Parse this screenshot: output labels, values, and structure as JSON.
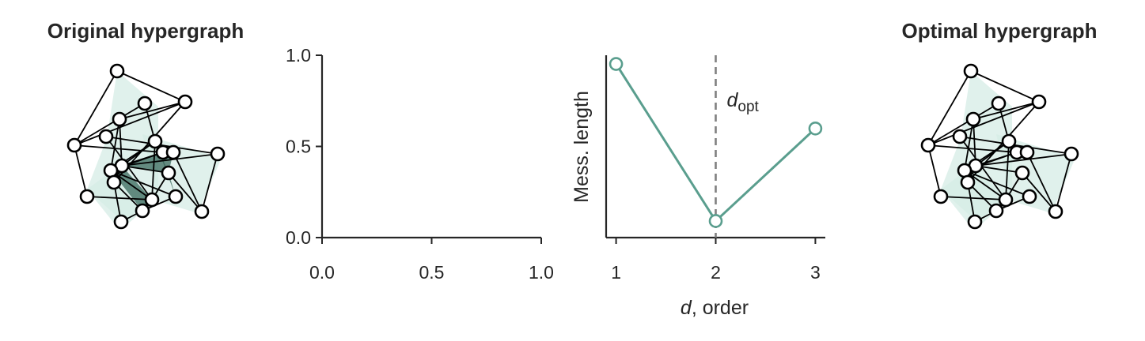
{
  "colors": {
    "series": "#5a9e8e",
    "hyperedge_light": "#d6ece6",
    "hyperedge_dark": "#2f5f52",
    "node_fill": "#ffffff",
    "node_stroke": "#000000",
    "vline": "#808080",
    "axis": "#262626"
  },
  "chart_data": [
    {
      "type": "other",
      "title": "Original hypergraph",
      "description_of_marks": "network drawing with nodes and hyperedges"
    },
    {
      "type": "scatter",
      "title": "",
      "xlabel": "",
      "ylabel": "",
      "xlim": [
        0.0,
        1.0
      ],
      "ylim": [
        0.0,
        1.0
      ],
      "xticks": [
        "0.0",
        "0.5",
        "1.0"
      ],
      "yticks": [
        "0.0",
        "0.5",
        "1.0"
      ],
      "series": []
    },
    {
      "type": "line",
      "title": "",
      "xlabel_italic": "d",
      "xlabel_rest": ", order",
      "ylabel": "Mess. length",
      "x": [
        1,
        2,
        3
      ],
      "xticks": [
        "1",
        "2",
        "3"
      ],
      "xlim": [
        0.9,
        3.1
      ],
      "series": [
        {
          "values": [
            0.95,
            0.05,
            0.58
          ]
        }
      ],
      "ylim": [
        0.0,
        1.0
      ],
      "vline": {
        "x": 2,
        "label_italic": "d",
        "label_sub": "opt"
      }
    },
    {
      "type": "other",
      "title": "Optimal hypergraph",
      "description_of_marks": "network drawing with nodes and hyperedges"
    }
  ]
}
